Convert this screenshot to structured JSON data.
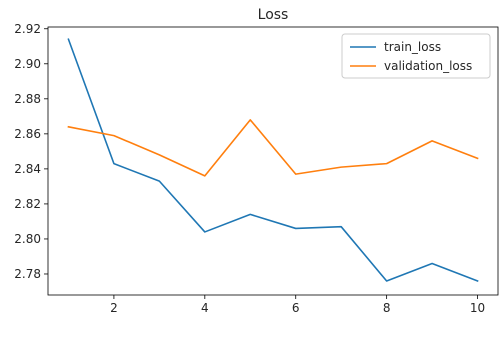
{
  "chart_data": {
    "type": "line",
    "title": "Loss",
    "xlabel": "",
    "ylabel": "",
    "x": [
      1,
      2,
      3,
      4,
      5,
      6,
      7,
      8,
      9,
      10
    ],
    "xlim": [
      0.55,
      10.45
    ],
    "ylim": [
      2.768,
      2.921
    ],
    "xticks": [
      2,
      4,
      6,
      8,
      10
    ],
    "yticks": [
      2.78,
      2.8,
      2.82,
      2.84,
      2.86,
      2.88,
      2.9,
      2.92
    ],
    "xtick_labels": [
      "2",
      "4",
      "6",
      "8",
      "10"
    ],
    "ytick_labels": [
      "2.78",
      "2.80",
      "2.82",
      "2.84",
      "2.86",
      "2.88",
      "2.90",
      "2.92"
    ],
    "grid": false,
    "legend_position": "top-right",
    "series": [
      {
        "name": "train_loss",
        "color": "#1f77b4",
        "values": [
          2.914,
          2.843,
          2.833,
          2.804,
          2.814,
          2.806,
          2.807,
          2.776,
          2.786,
          2.776
        ]
      },
      {
        "name": "validation_loss",
        "color": "#ff7f0e",
        "values": [
          2.864,
          2.859,
          2.848,
          2.836,
          2.868,
          2.837,
          2.841,
          2.843,
          2.856,
          2.846
        ]
      }
    ]
  }
}
